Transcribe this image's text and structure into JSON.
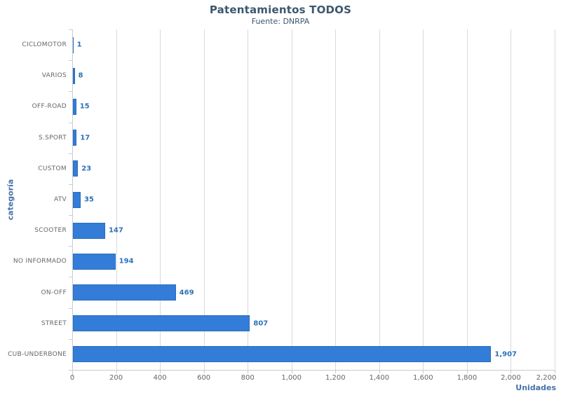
{
  "title": "Patentamientos TODOS",
  "subtitle": "Fuente: DNRPA",
  "chart_data": {
    "type": "bar",
    "orientation": "horizontal",
    "title": "Patentamientos TODOS",
    "subtitle": "Fuente: DNRPA",
    "categories": [
      "CICLOMOTOR",
      "VARIOS",
      "OFF-ROAD",
      "S.SPORT",
      "CUSTOM",
      "ATV",
      "SCOOTER",
      "NO INFORMADO",
      "ON-OFF",
      "STREET",
      "CUB-UNDERBONE"
    ],
    "values": [
      1,
      8,
      15,
      17,
      23,
      35,
      147,
      194,
      469,
      807,
      1907
    ],
    "value_labels": [
      "1",
      "8",
      "15",
      "17",
      "23",
      "35",
      "147",
      "194",
      "469",
      "807",
      "1,907"
    ],
    "xlabel": "Unidades",
    "ylabel": "categoría",
    "xlim": [
      0,
      2200
    ],
    "x_ticks": [
      0,
      200,
      400,
      600,
      800,
      1000,
      1200,
      1400,
      1600,
      1800,
      2000,
      2200
    ],
    "x_tick_labels": [
      "0",
      "200",
      "400",
      "600",
      "800",
      "1,000",
      "1,200",
      "1,400",
      "1,600",
      "1,800",
      "2,000",
      "2,200"
    ],
    "grid": true,
    "legend": false
  },
  "colors": {
    "bar": "#337dd8",
    "bar_border": "#2a6cbe",
    "value_label": "#2b71b8",
    "title": "#3e576f",
    "subtitle": "#3e576f",
    "axis_title": "#4572a7",
    "category_label": "#666666",
    "tick_label": "#666666",
    "grid_line": "#d9d9d9",
    "axis_line": "#c6ccd2",
    "background": "#ffffff"
  }
}
